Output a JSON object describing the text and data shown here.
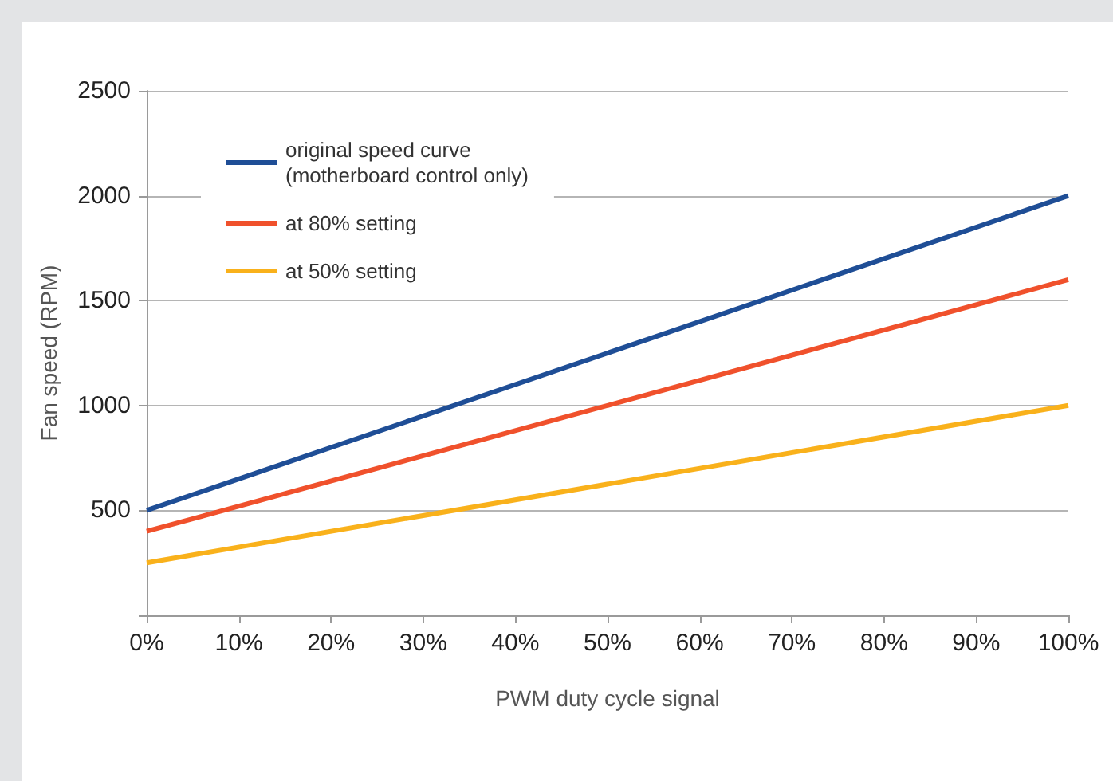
{
  "chart_data": {
    "type": "line",
    "xlabel": "PWM duty cycle signal",
    "ylabel": "Fan speed (RPM)",
    "x": [
      0,
      100
    ],
    "series": [
      {
        "name": "original speed curve\n(motherboard control only)",
        "color": "#1f4e96",
        "values": [
          500,
          2000
        ]
      },
      {
        "name": "at 80% setting",
        "color": "#f0512c",
        "values": [
          400,
          1600
        ]
      },
      {
        "name": "at 50% setting",
        "color": "#f9b11b",
        "values": [
          250,
          1000
        ]
      }
    ],
    "xlim": [
      0,
      100
    ],
    "xticks": [
      {
        "value": 0,
        "label": "0%"
      },
      {
        "value": 10,
        "label": "10%"
      },
      {
        "value": 20,
        "label": "20%"
      },
      {
        "value": 30,
        "label": "30%"
      },
      {
        "value": 40,
        "label": "40%"
      },
      {
        "value": 50,
        "label": "50%"
      },
      {
        "value": 60,
        "label": "60%"
      },
      {
        "value": 70,
        "label": "70%"
      },
      {
        "value": 80,
        "label": "80%"
      },
      {
        "value": 90,
        "label": "90%"
      },
      {
        "value": 100,
        "label": "100%"
      }
    ],
    "ylim": [
      0,
      2500
    ],
    "yticks": [
      {
        "value": 0,
        "label": null
      },
      500,
      1000,
      1500,
      2000,
      2500
    ],
    "grid": "y",
    "legend": "top left",
    "marker": "none",
    "line_style": "solid"
  }
}
